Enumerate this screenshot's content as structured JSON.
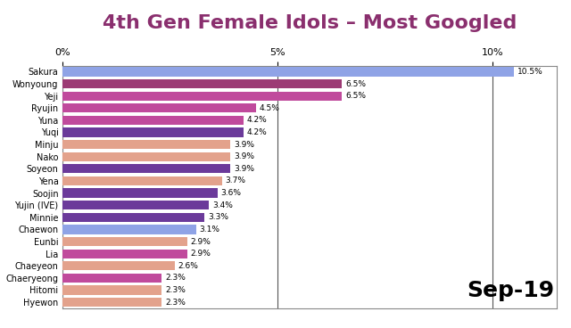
{
  "chart_data": {
    "type": "bar",
    "orientation": "horizontal",
    "title": "4th Gen Female Idols – Most Googled",
    "categories": [
      "Sakura",
      "Wonyoung",
      "Yeji",
      "Ryujin",
      "Yuna",
      "Yuqi",
      "Minju",
      "Nako",
      "Soyeon",
      "Yena",
      "Soojin",
      "Yujin (IVE)",
      "Minnie",
      "Chaewon",
      "Eunbi",
      "Lia",
      "Chaeyeon",
      "Chaeryeong",
      "Hitomi",
      "Hyewon"
    ],
    "values": [
      10.5,
      6.5,
      6.5,
      4.5,
      4.2,
      4.2,
      3.9,
      3.9,
      3.9,
      3.7,
      3.6,
      3.4,
      3.3,
      3.1,
      2.9,
      2.9,
      2.6,
      2.3,
      2.3,
      2.3
    ],
    "value_labels": [
      "10.5%",
      "6.5%",
      "6.5%",
      "4.5%",
      "4.2%",
      "4.2%",
      "3.9%",
      "3.9%",
      "3.9%",
      "3.7%",
      "3.6%",
      "3.4%",
      "3.3%",
      "3.1%",
      "2.9%",
      "2.9%",
      "2.6%",
      "2.3%",
      "2.3%",
      "2.3%"
    ],
    "colors": [
      "#8fa3e6",
      "#9c3a74",
      "#c04a9c",
      "#c04a9c",
      "#c04a9c",
      "#6b3a9a",
      "#e3a28c",
      "#e3a28c",
      "#6b3a9a",
      "#e3a28c",
      "#6b3a9a",
      "#6b3a9a",
      "#6b3a9a",
      "#8fa3e6",
      "#e3a28c",
      "#c04a9c",
      "#e3a28c",
      "#c04a9c",
      "#e3a28c",
      "#e3a28c"
    ],
    "data_labels": true,
    "xlim": [
      0,
      11.5
    ],
    "xticks": [
      {
        "value": 0,
        "label": "0%"
      },
      {
        "value": 5,
        "label": "5%"
      },
      {
        "value": 10,
        "label": "10%"
      }
    ],
    "grid": true,
    "annotations": [
      "Sep-19"
    ]
  }
}
